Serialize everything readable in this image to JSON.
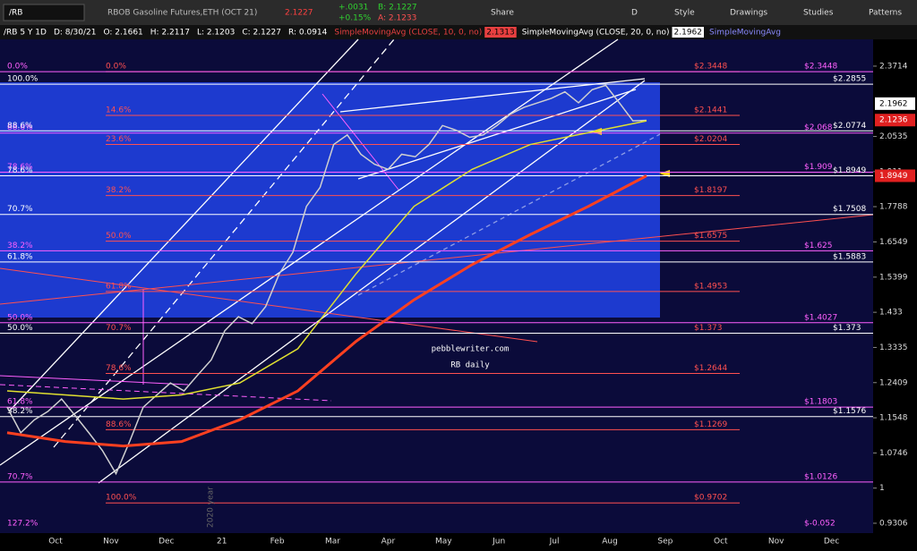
{
  "toolbar": {
    "symbol": "/RB",
    "description": "RBOB Gasoline Futures,ETH (OCT 21)",
    "last": "2.1227",
    "change": "+.0031",
    "change_pct": "+0.15%",
    "bid": "B: 2.1227",
    "ask": "A: 2.1233",
    "buttons": [
      "Share",
      "D",
      "Style",
      "Drawings",
      "Studies",
      "Patterns"
    ]
  },
  "info_bar": {
    "items": [
      "/RB 5 Y 1D",
      "D: 8/30/21",
      "O: 2.1661",
      "H: 2.2117",
      "L: 2.1203",
      "C: 2.1227",
      "R: 0.0914"
    ],
    "studies": [
      {
        "name": "SimpleMovingAvg (CLOSE, 10, 0, no)",
        "value": "2.1313",
        "color": "#e84040"
      },
      {
        "name": "SimpleMovingAvg (CLOSE, 20, 0, no)",
        "value": "2.1962",
        "color": "#ffffff"
      },
      {
        "name": "SimpleMovingAvg",
        "color": "#8a8aff"
      }
    ]
  },
  "chart_data": {
    "type": "line",
    "log_scale": true,
    "ylim": [
      0.912,
      2.505
    ],
    "yticks": [
      2.3714,
      2.0535,
      1.911,
      1.7788,
      1.6549,
      1.5399,
      1.433,
      1.3335,
      1.2409,
      1.1548,
      1.0746,
      1,
      0.9306
    ],
    "x_labels": [
      "Oct",
      "Nov",
      "Dec",
      "21",
      "Feb",
      "Mar",
      "Apr",
      "May",
      "Jun",
      "Jul",
      "Aug",
      "Sep",
      "Oct",
      "Nov",
      "Dec"
    ],
    "series": [
      {
        "color": "#d0d0d0",
        "values": [
          1.18,
          1.12,
          1.15,
          1.17,
          1.2,
          1.16,
          1.12,
          1.08,
          1.03,
          1.1,
          1.18,
          1.21,
          1.24,
          1.22,
          1.26,
          1.3,
          1.38,
          1.42,
          1.4,
          1.45,
          1.55,
          1.62,
          1.78,
          1.85,
          2.02,
          2.06,
          1.98,
          1.94,
          1.92,
          1.98,
          1.97,
          2.02,
          2.1,
          2.08,
          2.05,
          2.06,
          2.1,
          2.15,
          2.18,
          2.2,
          2.22,
          2.25,
          2.2,
          2.26,
          2.28,
          2.2,
          2.12,
          2.1227
        ]
      },
      {
        "color": "#e0e030",
        "values": [
          1.22,
          1.21,
          1.2,
          1.21,
          1.24,
          1.33,
          1.55,
          1.78,
          1.92,
          2.02,
          2.07,
          2.12
        ]
      },
      {
        "color": "#ff4020",
        "values": [
          1.12,
          1.1,
          1.09,
          1.1,
          1.15,
          1.22,
          1.35,
          1.47,
          1.58,
          1.68,
          1.78,
          1.8949
        ]
      }
    ],
    "price_tags": [
      {
        "value": 2.1962,
        "bg": "#ffffff",
        "fg": "#000000"
      },
      {
        "value": 2.1236,
        "bg": "#e02020",
        "fg": "#ffffff"
      },
      {
        "value": 1.8949,
        "bg": "#e02020",
        "fg": "#ffffff"
      }
    ],
    "fib_sets": [
      {
        "color": "#ff5050",
        "levels": [
          {
            "pct": "0.0%",
            "value": 2.3448,
            "label": "$2.3448"
          },
          {
            "pct": "14.6%",
            "value": 2.1441,
            "label": "$2.1441"
          },
          {
            "pct": "23.6%",
            "value": 2.0204,
            "label": "$2.0204"
          },
          {
            "pct": "38.2%",
            "value": 1.8197,
            "label": "$1.8197"
          },
          {
            "pct": "50.0%",
            "value": 1.6575,
            "label": "$1.6575"
          },
          {
            "pct": "61.8%",
            "value": 1.4953,
            "label": "$1.4953"
          },
          {
            "pct": "70.7%",
            "value": 1.373,
            "label": "$1.373"
          },
          {
            "pct": "78.6%",
            "value": 1.2644,
            "label": "$1.2644"
          },
          {
            "pct": "88.6%",
            "value": 1.1269,
            "label": "$1.1269"
          },
          {
            "pct": "100.0%",
            "value": 0.9702,
            "label": "$0.9702"
          }
        ]
      },
      {
        "color": "#ff60ff",
        "levels": [
          {
            "pct": "0.0%",
            "value": 2.3448,
            "label": "$2.3448"
          },
          {
            "pct": "88.6%",
            "value": 2.068,
            "label": "$2.068"
          },
          {
            "pct": "78.6%",
            "value": 1.909,
            "label": "$1.909"
          },
          {
            "pct": "38.2%",
            "value": 1.625,
            "label": "$1.625"
          },
          {
            "pct": "50.0%",
            "value": 1.4027,
            "label": "$1.4027"
          },
          {
            "pct": "61.8%",
            "value": 1.1803,
            "label": "$1.1803"
          },
          {
            "pct": "70.7%",
            "value": 1.0126,
            "label": "$1.0126"
          },
          {
            "pct": "127.2%",
            "value": -0.052,
            "label": "$-0.052"
          }
        ]
      },
      {
        "color": "#ffffff",
        "levels": [
          {
            "pct": "100.0%",
            "value": 2.2855,
            "label": "$2.2855"
          },
          {
            "pct": "88.6%",
            "value": 2.0774,
            "label": "$2.0774"
          },
          {
            "pct": "78.6%",
            "value": 1.8949,
            "label": "$1.8949"
          },
          {
            "pct": "70.7%",
            "value": 1.7508,
            "label": "$1.7508"
          },
          {
            "pct": "61.8%",
            "value": 1.5883,
            "label": "$1.5883"
          },
          {
            "pct": "50.0%",
            "value": 1.373,
            "label": "$1.373"
          },
          {
            "pct": "38.2%",
            "value": 1.1576,
            "label": "$1.1576"
          }
        ]
      }
    ],
    "annotations": [
      "pebblewriter.com",
      "RB daily",
      "2020 year"
    ]
  }
}
